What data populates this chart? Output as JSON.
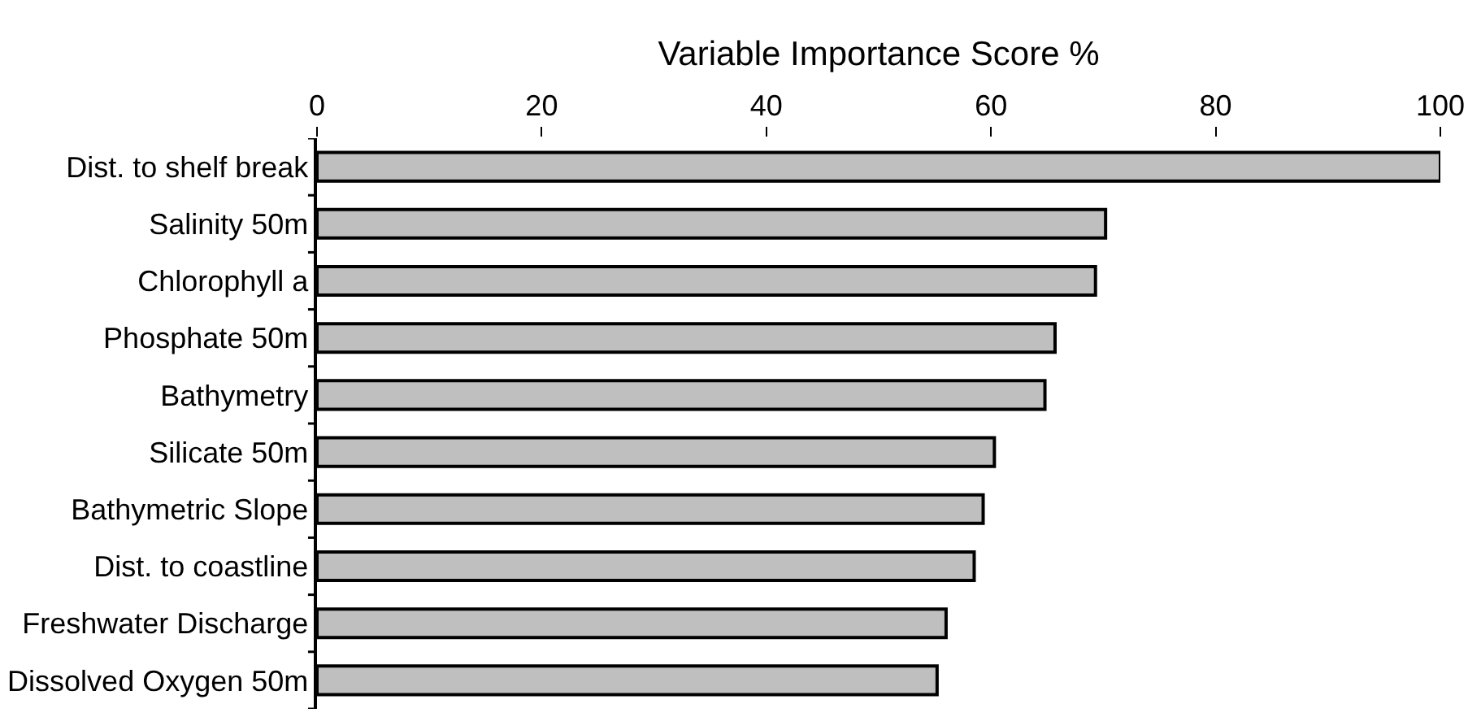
{
  "chart_data": {
    "type": "bar",
    "orientation": "horizontal",
    "xlabel": "Variable Importance Score %",
    "categories": [
      "Dist. to shelf break",
      "Salinity 50m",
      "Chlorophyll a",
      "Phosphate 50m",
      "Bathymetry",
      "Silicate 50m",
      "Bathymetric Slope",
      "Dist. to coastline",
      "Freshwater Discharge",
      "Dissolved Oxygen 50m"
    ],
    "values": [
      100,
      70.2,
      69.3,
      65.7,
      64.8,
      60.3,
      59.3,
      58.5,
      56,
      55.2
    ],
    "color": "#bfbfbf",
    "xlim": [
      0,
      100
    ],
    "xticks": [
      0,
      20,
      40,
      60,
      80,
      100
    ],
    "grid": false,
    "legend": false
  }
}
